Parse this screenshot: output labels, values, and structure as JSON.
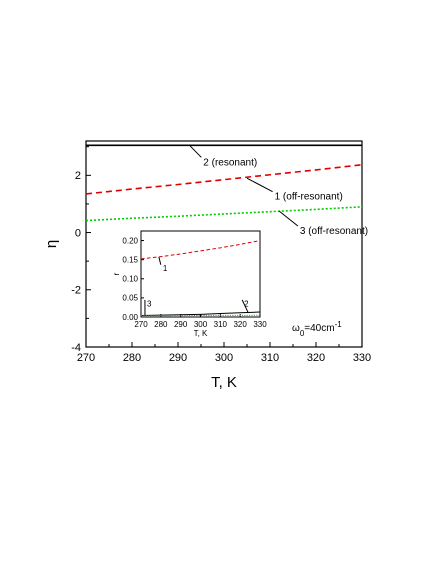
{
  "chart_data": [
    {
      "type": "line",
      "xlabel": "T, K",
      "ylabel": "η",
      "xlim": [
        270,
        330
      ],
      "ylim": [
        -4,
        3.2
      ],
      "xticks": [
        270,
        280,
        290,
        300,
        310,
        320,
        330
      ],
      "yticks": [
        -4,
        -2,
        0,
        2
      ],
      "x_minor_step": 5,
      "y_minor_step": 1,
      "grid": false,
      "series": [
        {
          "name": "2 (resonant)",
          "color": "#000000",
          "dash": "solid",
          "x": [
            270,
            330
          ],
          "y": [
            3.05,
            3.05
          ]
        },
        {
          "name": "1 (off-resonant)",
          "color": "#e00000",
          "dash": "dashed",
          "x": [
            270,
            280,
            290,
            300,
            310,
            320,
            330
          ],
          "y": [
            1.35,
            1.52,
            1.68,
            1.85,
            2.02,
            2.19,
            2.37
          ]
        },
        {
          "name": "3 (off-resonant)",
          "color": "#00cc00",
          "dash": "dotted",
          "x": [
            270,
            280,
            290,
            300,
            310,
            320,
            330
          ],
          "y": [
            0.42,
            0.5,
            0.57,
            0.65,
            0.73,
            0.81,
            0.9
          ]
        }
      ],
      "annotations": [
        {
          "text": "2 (resonant)",
          "x": 295.5,
          "y": 2.35,
          "point_x": 292.5,
          "point_y": 3.05
        },
        {
          "text": "1 (off-resonant)",
          "x": 311,
          "y": 1.15,
          "point_x": 305,
          "point_y": 1.9
        },
        {
          "text": "3 (off-resonant)",
          "x": 316.5,
          "y": -0.05,
          "point_x": 312,
          "point_y": 0.75
        }
      ],
      "parameter_label": {
        "text": "ω",
        "sub": "0",
        "rest": "=40cm",
        "sup": "-1"
      }
    },
    {
      "type": "line",
      "role": "inset",
      "xlabel": "T, K",
      "ylabel": "r",
      "xlim": [
        270,
        330
      ],
      "ylim": [
        0,
        0.225
      ],
      "xticks": [
        270,
        280,
        290,
        300,
        310,
        320,
        330
      ],
      "yticks": [
        0.0,
        0.05,
        0.1,
        0.15,
        0.2
      ],
      "ytick_labels": [
        "0.00",
        "0.05",
        "0.10",
        "0.15",
        "0.20"
      ],
      "series": [
        {
          "name": "1",
          "color": "#e00000",
          "dash": "dashed",
          "x": [
            270,
            280,
            290,
            300,
            310,
            320,
            330
          ],
          "y": [
            0.152,
            0.158,
            0.165,
            0.173,
            0.181,
            0.19,
            0.2
          ]
        },
        {
          "name": "2",
          "color": "#000000",
          "dash": "solid",
          "x": [
            270,
            280,
            290,
            300,
            310,
            320,
            330
          ],
          "y": [
            0.004,
            0.005,
            0.006,
            0.007,
            0.009,
            0.011,
            0.013
          ]
        },
        {
          "name": "3",
          "color": "#00cc00",
          "dash": "dotted",
          "x": [
            270,
            300,
            330
          ],
          "y": [
            0.0035,
            0.004,
            0.0045
          ]
        }
      ],
      "annotations": [
        {
          "text": "1",
          "x": 281,
          "y": 0.12,
          "point_x": 279,
          "point_y": 0.157
        },
        {
          "text": "2",
          "x": 322,
          "y": 0.028,
          "point_x": 324,
          "point_y": 0.012
        },
        {
          "text": "3",
          "x": 273,
          "y": 0.028,
          "point_x": 272,
          "point_y": 0.005
        }
      ]
    }
  ]
}
